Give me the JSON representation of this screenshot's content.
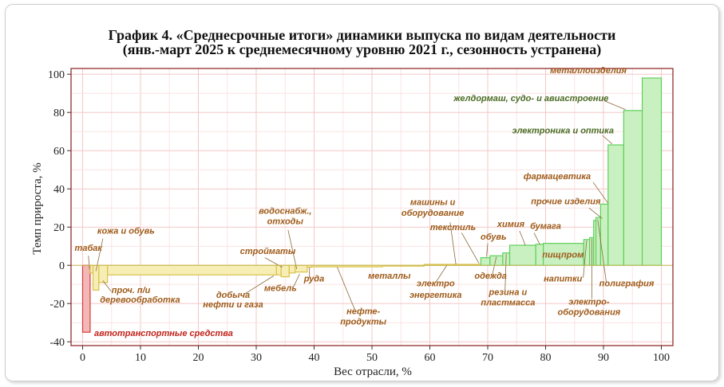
{
  "title_line1": "График 4. «Среднесрочные итоги» динамики выпуска по видам деятельности",
  "title_line2": "(янв.-март 2025 к среднемесячному уровню 2021 г., сезонность устранена)",
  "chart_data": {
    "type": "bar",
    "subtype": "variable-width bar (weight vs growth)",
    "xlabel": "Вес отрасли, %",
    "ylabel": "Темп прироста, %",
    "xlim": [
      -2,
      102
    ],
    "ylim": [
      -42,
      103
    ],
    "xticks": [
      0,
      10,
      20,
      30,
      40,
      50,
      60,
      70,
      80,
      90,
      100
    ],
    "yticks": [
      -40,
      -20,
      0,
      20,
      40,
      60,
      80,
      100
    ],
    "grid": true,
    "colors": {
      "negative": "#f2b8b8",
      "negative_edge": "#d93b3b",
      "low": "#f7eeb6",
      "low_edge": "#d9c24a",
      "high": "#c9f0c0",
      "high_edge": "#5fd05a",
      "label_red": "#c0231b",
      "label_brown": "#9e5a18",
      "label_green": "#4a6b24"
    },
    "bars": [
      {
        "x0": 0.0,
        "x1": 1.3,
        "y": -35.0
      },
      {
        "x0": 1.3,
        "x1": 1.8,
        "y": -4.0
      },
      {
        "x0": 1.8,
        "x1": 2.8,
        "y": -13.0
      },
      {
        "x0": 2.8,
        "x1": 4.3,
        "y": -9.0
      },
      {
        "x0": 4.3,
        "x1": 33.5,
        "y": -5.0
      },
      {
        "x0": 33.5,
        "x1": 34.3,
        "y": -5.0
      },
      {
        "x0": 34.3,
        "x1": 35.7,
        "y": -6.0
      },
      {
        "x0": 35.7,
        "x1": 36.7,
        "y": -4.0
      },
      {
        "x0": 36.7,
        "x1": 38.8,
        "y": -3.5
      },
      {
        "x0": 38.8,
        "x1": 39.6,
        "y": -1.0
      },
      {
        "x0": 39.6,
        "x1": 51.8,
        "y": -0.8
      },
      {
        "x0": 51.8,
        "x1": 59.0,
        "y": -0.3
      },
      {
        "x0": 59.0,
        "x1": 68.8,
        "y": 0.5
      },
      {
        "x0": 68.8,
        "x1": 70.4,
        "y": 4.0
      },
      {
        "x0": 70.4,
        "x1": 72.6,
        "y": 5.0
      },
      {
        "x0": 72.6,
        "x1": 73.8,
        "y": 6.5
      },
      {
        "x0": 73.8,
        "x1": 78.3,
        "y": 10.5
      },
      {
        "x0": 78.3,
        "x1": 79.6,
        "y": 11.0
      },
      {
        "x0": 79.6,
        "x1": 86.6,
        "y": 11.5
      },
      {
        "x0": 86.6,
        "x1": 87.6,
        "y": 13.5
      },
      {
        "x0": 87.6,
        "x1": 88.3,
        "y": 14.5
      },
      {
        "x0": 88.3,
        "x1": 88.7,
        "y": 23.5
      },
      {
        "x0": 88.7,
        "x1": 89.5,
        "y": 25.0
      },
      {
        "x0": 89.5,
        "x1": 90.8,
        "y": 32.0
      },
      {
        "x0": 90.8,
        "x1": 93.5,
        "y": 63.0
      },
      {
        "x0": 93.5,
        "x1": 96.7,
        "y": 81.0
      },
      {
        "x0": 96.7,
        "x1": 100.0,
        "y": 98.0
      }
    ],
    "annotations": [
      {
        "text": "автотранспортные средства",
        "x": 2.0,
        "y": -37.0,
        "color": "red",
        "anchor": "start"
      },
      {
        "text": "табак",
        "x": 1.0,
        "y": 7.5,
        "color": "brown",
        "anchor": "middle"
      },
      {
        "text": "кожа и обувь",
        "x": 7.5,
        "y": 16.5,
        "color": "brown",
        "anchor": "middle"
      },
      {
        "text": "проч. п/и",
        "x": 5.0,
        "y": -14.5,
        "color": "brown",
        "anchor": "start"
      },
      {
        "text": "деревообработка",
        "x": 3.0,
        "y": -19.5,
        "color": "brown",
        "anchor": "start"
      },
      {
        "text": "добыча",
        "x": 26.0,
        "y": -17.0,
        "color": "brown",
        "anchor": "middle"
      },
      {
        "text": "нефти и газа",
        "x": 26.0,
        "y": -22.0,
        "color": "brown",
        "anchor": "middle"
      },
      {
        "text": "стройматы",
        "x": 32.0,
        "y": 6.0,
        "color": "brown",
        "anchor": "middle"
      },
      {
        "text": "водоснабж.,",
        "x": 35.0,
        "y": 27.0,
        "color": "brown",
        "anchor": "middle"
      },
      {
        "text": "отходы",
        "x": 35.0,
        "y": 21.5,
        "color": "brown",
        "anchor": "middle"
      },
      {
        "text": "мебель",
        "x": 37.0,
        "y": -13.5,
        "color": "brown",
        "anchor": "end"
      },
      {
        "text": "руда",
        "x": 40.0,
        "y": -8.5,
        "color": "brown",
        "anchor": "middle"
      },
      {
        "text": "металлы",
        "x": 53.0,
        "y": -7.0,
        "color": "brown",
        "anchor": "middle"
      },
      {
        "text": "нефте-",
        "x": 48.5,
        "y": -25.5,
        "color": "brown",
        "anchor": "middle"
      },
      {
        "text": "продукты",
        "x": 48.5,
        "y": -31.0,
        "color": "brown",
        "anchor": "middle"
      },
      {
        "text": "электро",
        "x": 61.0,
        "y": -11.0,
        "color": "brown",
        "anchor": "middle"
      },
      {
        "text": "энергетика",
        "x": 61.0,
        "y": -17.0,
        "color": "brown",
        "anchor": "middle"
      },
      {
        "text": "машины и",
        "x": 60.5,
        "y": 31.5,
        "color": "brown",
        "anchor": "middle"
      },
      {
        "text": "оборудование",
        "x": 60.5,
        "y": 26.0,
        "color": "brown",
        "anchor": "middle"
      },
      {
        "text": "текстиль",
        "x": 64.0,
        "y": 18.5,
        "color": "brown",
        "anchor": "middle"
      },
      {
        "text": "обувь",
        "x": 71.0,
        "y": 13.5,
        "color": "brown",
        "anchor": "middle"
      },
      {
        "text": "одежда",
        "x": 70.5,
        "y": -7.0,
        "color": "brown",
        "anchor": "middle"
      },
      {
        "text": "химия",
        "x": 74.0,
        "y": 20.0,
        "color": "brown",
        "anchor": "middle"
      },
      {
        "text": "резина и",
        "x": 73.5,
        "y": -15.5,
        "color": "brown",
        "anchor": "middle"
      },
      {
        "text": "пластмасса",
        "x": 73.5,
        "y": -21.0,
        "color": "brown",
        "anchor": "middle"
      },
      {
        "text": "бумага",
        "x": 80.0,
        "y": 19.0,
        "color": "brown",
        "anchor": "middle"
      },
      {
        "text": "пищпром",
        "x": 83.0,
        "y": 4.0,
        "color": "brown",
        "anchor": "middle"
      },
      {
        "text": "напитки",
        "x": 83.0,
        "y": -8.5,
        "color": "brown",
        "anchor": "middle"
      },
      {
        "text": "прочие изделия",
        "x": 83.5,
        "y": 32.0,
        "color": "brown",
        "anchor": "middle"
      },
      {
        "text": "электро-",
        "x": 87.5,
        "y": -20.5,
        "color": "brown",
        "anchor": "middle"
      },
      {
        "text": "оборудования",
        "x": 87.5,
        "y": -26.0,
        "color": "brown",
        "anchor": "middle"
      },
      {
        "text": "полиграфия",
        "x": 94.0,
        "y": -11.0,
        "color": "brown",
        "anchor": "middle"
      },
      {
        "text": "фармацевтика",
        "x": 82.0,
        "y": 45.0,
        "color": "brown",
        "anchor": "middle"
      },
      {
        "text": "электроника и оптика",
        "x": 83.0,
        "y": 69.0,
        "color": "green",
        "anchor": "middle"
      },
      {
        "text": "желдормаш, судо- и авиастроение",
        "x": 77.5,
        "y": 86.0,
        "color": "green",
        "anchor": "middle"
      },
      {
        "text": "металлоизделия",
        "x": 94.0,
        "y": 100.5,
        "color": "brown",
        "anchor": "end"
      }
    ],
    "leaders": [
      [
        1.0,
        5.0,
        1.2,
        -2.0
      ],
      [
        3.5,
        14.0,
        2.3,
        -3.0
      ],
      [
        4.9,
        -13.5,
        3.5,
        -8.0
      ],
      [
        28.0,
        -15.0,
        33.0,
        -5.5
      ],
      [
        31.5,
        4.0,
        34.5,
        -1.0
      ],
      [
        35.5,
        18.5,
        37.0,
        -2.0
      ],
      [
        36.5,
        -11.0,
        37.5,
        -4.5
      ],
      [
        39.2,
        -6.5,
        39.2,
        -1.2
      ],
      [
        47.0,
        -23.0,
        44.0,
        -1.0
      ],
      [
        61.0,
        -9.0,
        63.0,
        0.3
      ],
      [
        63.5,
        22.5,
        64.5,
        0.6
      ],
      [
        65.5,
        17.0,
        68.5,
        1.0
      ],
      [
        70.0,
        11.5,
        69.8,
        4.5
      ],
      [
        70.8,
        -5.0,
        71.5,
        4.5
      ],
      [
        73.0,
        -13.0,
        73.2,
        6.0
      ],
      [
        75.5,
        18.0,
        76.5,
        10.5
      ],
      [
        78.0,
        17.0,
        79.0,
        11.0
      ],
      [
        86.5,
        -6.5,
        87.1,
        13.0
      ],
      [
        88.0,
        -17.5,
        88.0,
        14.0
      ],
      [
        90.5,
        -9.0,
        89.0,
        24.0
      ],
      [
        87.5,
        30.0,
        89.8,
        24.5
      ],
      [
        88.2,
        43.5,
        90.8,
        32.5
      ],
      [
        89.8,
        68.0,
        91.5,
        63.5
      ],
      [
        90.2,
        86.0,
        93.8,
        81.5
      ]
    ]
  }
}
